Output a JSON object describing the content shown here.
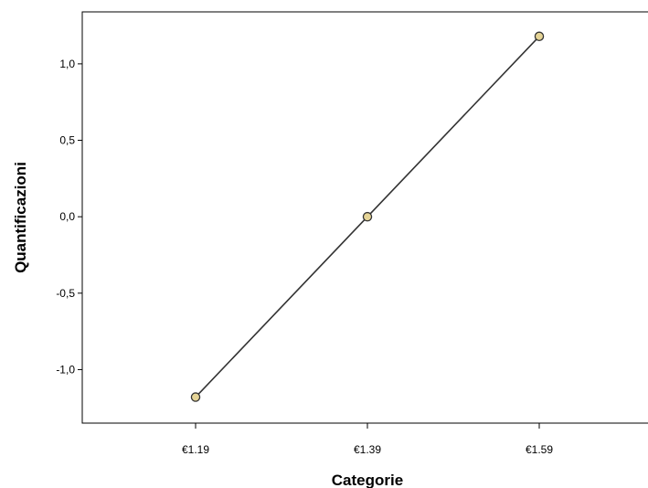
{
  "chart_data": {
    "type": "line",
    "title": "",
    "xlabel": "Categorie",
    "ylabel": "Quantificazioni",
    "categories": [
      "€1.19",
      "€1.39",
      "€1.59"
    ],
    "series": [
      {
        "values": [
          -1.18,
          0.0,
          1.18
        ]
      }
    ],
    "ylim": [
      -1.35,
      1.34
    ],
    "yticks": [
      -1.0,
      -0.5,
      0.0,
      0.5,
      1.0
    ],
    "ytick_labels": [
      "-1,0",
      "-0,5",
      "0,0",
      "0,5",
      "1,0"
    ],
    "grid": false,
    "colors": {
      "line": "#333333",
      "marker_fill": "#e5d496",
      "marker_stroke": "#333333",
      "plot_background": "#ffffff",
      "axis": "#000000"
    }
  }
}
